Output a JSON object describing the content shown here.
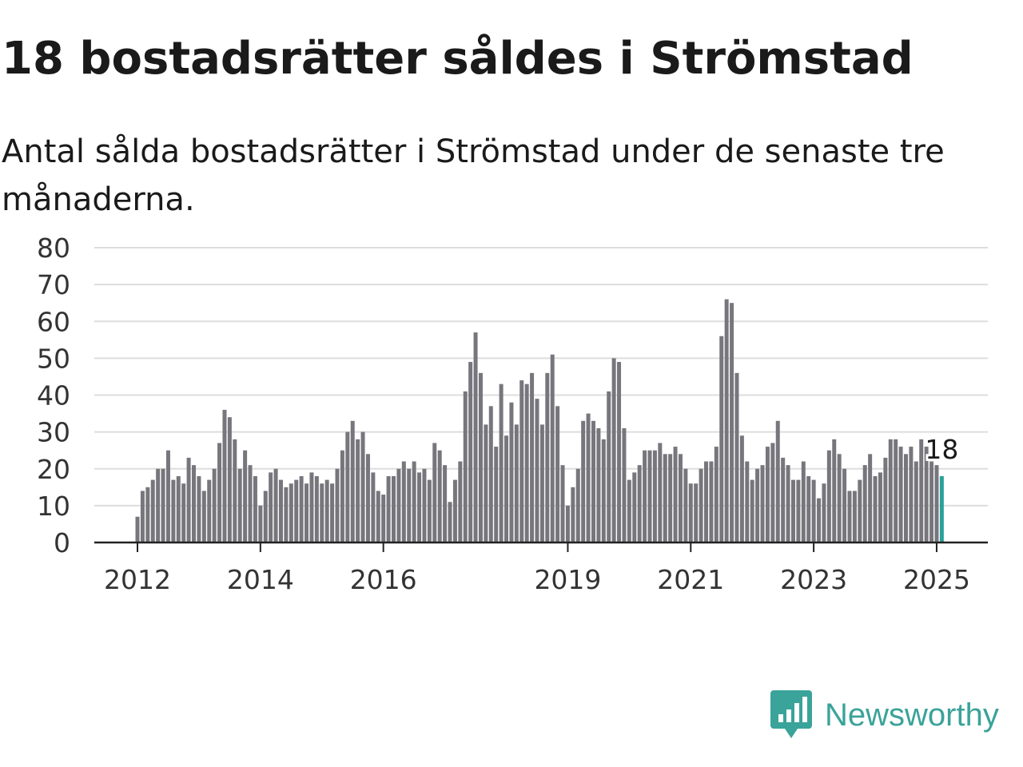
{
  "title": "18 bostadsrätter såldes i Strömstad",
  "subtitle": "Antal sålda bostadsrätter i Strömstad under de senaste tre månaderna.",
  "brand": {
    "name": "Newsworthy",
    "logo_icon": "newsworthy-logo-icon"
  },
  "colors": {
    "bar": "#77767d",
    "highlight": "#2aa198",
    "grid": "#dddddd",
    "axis": "#222222",
    "brand": "#3aa39a"
  },
  "chart_data": {
    "type": "bar",
    "x_start": "2012-01",
    "ylim": [
      0,
      80
    ],
    "yticks": [
      "0",
      "10",
      "20",
      "30",
      "40",
      "50",
      "60",
      "70",
      "80"
    ],
    "xticks": [
      {
        "label": "2012",
        "month": "2012-01"
      },
      {
        "label": "2014",
        "month": "2014-01"
      },
      {
        "label": "2016",
        "month": "2016-01"
      },
      {
        "label": "2019",
        "month": "2019-01"
      },
      {
        "label": "2021",
        "month": "2021-01"
      },
      {
        "label": "2023",
        "month": "2023-01"
      },
      {
        "label": "2025",
        "month": "2025-01"
      }
    ],
    "grid": true,
    "highlight_label": "18",
    "values": [
      7,
      14,
      15,
      17,
      20,
      20,
      25,
      17,
      18,
      16,
      23,
      21,
      18,
      14,
      17,
      20,
      27,
      36,
      34,
      28,
      20,
      25,
      21,
      18,
      10,
      14,
      19,
      20,
      17,
      15,
      16,
      17,
      18,
      16,
      19,
      18,
      16,
      17,
      16,
      20,
      25,
      30,
      33,
      28,
      30,
      24,
      19,
      14,
      13,
      18,
      18,
      20,
      22,
      20,
      22,
      19,
      20,
      17,
      27,
      25,
      21,
      11,
      17,
      22,
      41,
      49,
      57,
      46,
      32,
      37,
      26,
      43,
      29,
      38,
      32,
      44,
      43,
      46,
      39,
      32,
      46,
      51,
      37,
      21,
      10,
      15,
      20,
      33,
      35,
      33,
      31,
      28,
      41,
      50,
      49,
      31,
      17,
      19,
      21,
      25,
      25,
      25,
      27,
      24,
      24,
      26,
      24,
      20,
      16,
      16,
      20,
      22,
      22,
      26,
      56,
      66,
      65,
      46,
      29,
      22,
      17,
      20,
      21,
      26,
      27,
      33,
      23,
      21,
      17,
      17,
      22,
      18,
      17,
      12,
      16,
      25,
      28,
      24,
      20,
      14,
      14,
      17,
      21,
      24,
      18,
      19,
      23,
      28,
      28,
      26,
      24,
      26,
      22,
      28,
      26,
      22,
      21,
      18
    ]
  }
}
